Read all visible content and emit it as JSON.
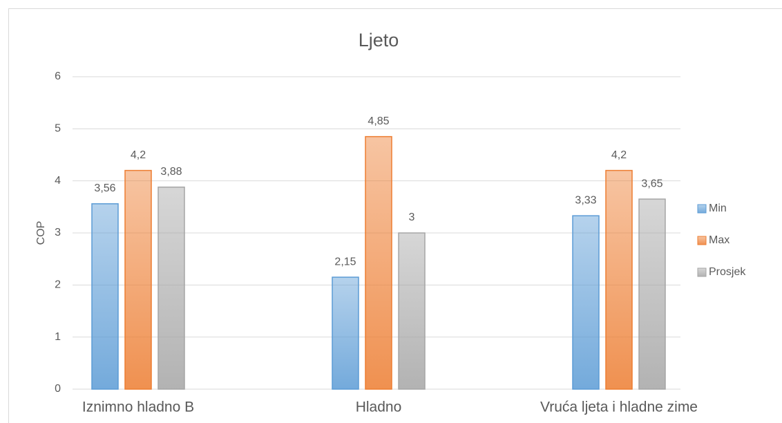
{
  "chart_data": {
    "type": "bar",
    "title": "Ljeto",
    "y_label": "COP",
    "categories": [
      "Iznimno hladno B",
      "Hladno",
      "Vruća ljeta i hladne zime"
    ],
    "series": [
      {
        "name": "Min",
        "color": "#5b9bd5",
        "values": [
          3.56,
          2.15,
          3.33
        ],
        "value_labels": [
          "3,56",
          "2,15",
          "3,33"
        ]
      },
      {
        "name": "Max",
        "color": "#ed7d31",
        "values": [
          4.2,
          4.85,
          4.2
        ],
        "value_labels": [
          "4,2",
          "4,85",
          "4,2"
        ]
      },
      {
        "name": "Prosjek",
        "color": "#a5a5a5",
        "values": [
          3.88,
          3,
          3.65
        ],
        "value_labels": [
          "3,88",
          "3",
          "3,65"
        ]
      }
    ],
    "ylim": [
      0,
      6
    ],
    "yticks": [
      0,
      1,
      2,
      3,
      4,
      5,
      6
    ],
    "grid": true,
    "legend": "right"
  }
}
